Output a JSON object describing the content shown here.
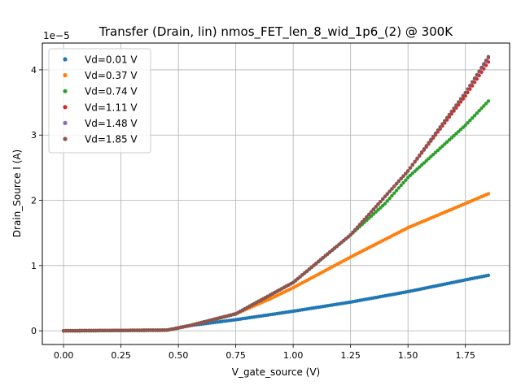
{
  "chart_data": {
    "type": "scatter",
    "title": "Transfer (Drain, lin) nmos_FET_len_8_wid_1p6_(2) @ 300K",
    "xlabel": "V_gate_source (V)",
    "ylabel": "Drain_Source I (A)",
    "y_scale_label": "1e−5",
    "y_scale": 1e-05,
    "xlim": [
      -0.0925,
      1.9425
    ],
    "ylim": [
      -0.21,
      4.41
    ],
    "xticks": [
      0.0,
      0.25,
      0.5,
      0.75,
      1.0,
      1.25,
      1.5,
      1.75
    ],
    "xtick_labels": [
      "0.00",
      "0.25",
      "0.50",
      "0.75",
      "1.00",
      "1.25",
      "1.50",
      "1.75"
    ],
    "yticks": [
      0,
      1,
      2,
      3,
      4
    ],
    "ytick_labels": [
      "0",
      "1",
      "2",
      "3",
      "4"
    ],
    "grid": true,
    "legend_position": "top-left",
    "x_range": [
      0.0,
      1.85
    ],
    "samples": [
      {
        "x": 0.0,
        "y": 0.0
      },
      {
        "x": 0.25,
        "y": 0.0
      },
      {
        "x": 0.45,
        "y": 0.01
      },
      {
        "x": 0.5,
        "y": 0.04
      },
      {
        "x": 0.6,
        "y": 0.12
      },
      {
        "x": 0.75,
        "y": 0.25
      },
      {
        "x": 0.9,
        "y": 0.5
      },
      {
        "x": 1.0,
        "y": 0.73
      },
      {
        "x": 1.25,
        "y": 1.45
      },
      {
        "x": 1.5,
        "y": 2.45
      },
      {
        "x": 1.75,
        "y": 3.65
      },
      {
        "x": 1.85,
        "y": 4.2
      }
    ],
    "series": [
      {
        "name": "Vd=0.01 V",
        "color": "#1f77b4",
        "points": [
          [
            0.0,
            0.0
          ],
          [
            0.45,
            0.01
          ],
          [
            0.55,
            0.08
          ],
          [
            0.75,
            0.17
          ],
          [
            1.0,
            0.3
          ],
          [
            1.25,
            0.44
          ],
          [
            1.5,
            0.6
          ],
          [
            1.75,
            0.78
          ],
          [
            1.85,
            0.85
          ]
        ]
      },
      {
        "name": "Vd=0.37 V",
        "color": "#ff7f0e",
        "points": [
          [
            0.0,
            0.0
          ],
          [
            0.45,
            0.01
          ],
          [
            0.55,
            0.08
          ],
          [
            0.75,
            0.26
          ],
          [
            0.9,
            0.49
          ],
          [
            1.0,
            0.66
          ],
          [
            1.25,
            1.13
          ],
          [
            1.5,
            1.58
          ],
          [
            1.75,
            1.95
          ],
          [
            1.85,
            2.1
          ]
        ]
      },
      {
        "name": "Vd=0.74 V",
        "color": "#2ca02c",
        "points": [
          [
            0.0,
            0.0
          ],
          [
            0.45,
            0.01
          ],
          [
            0.55,
            0.08
          ],
          [
            0.75,
            0.26
          ],
          [
            1.0,
            0.74
          ],
          [
            1.25,
            1.47
          ],
          [
            1.4,
            1.95
          ],
          [
            1.5,
            2.35
          ],
          [
            1.75,
            3.15
          ],
          [
            1.85,
            3.52
          ]
        ]
      },
      {
        "name": "Vd=1.11 V",
        "color": "#d62728",
        "points": [
          [
            0.0,
            0.0
          ],
          [
            0.45,
            0.01
          ],
          [
            0.55,
            0.08
          ],
          [
            0.75,
            0.26
          ],
          [
            1.0,
            0.74
          ],
          [
            1.25,
            1.47
          ],
          [
            1.5,
            2.45
          ],
          [
            1.75,
            3.6
          ],
          [
            1.85,
            4.12
          ]
        ]
      },
      {
        "name": "Vd=1.48 V",
        "color": "#9467bd",
        "points": [
          [
            0.0,
            0.0
          ],
          [
            0.45,
            0.01
          ],
          [
            0.55,
            0.08
          ],
          [
            0.75,
            0.26
          ],
          [
            1.0,
            0.74
          ],
          [
            1.25,
            1.47
          ],
          [
            1.5,
            2.45
          ],
          [
            1.75,
            3.65
          ],
          [
            1.85,
            4.18
          ]
        ]
      },
      {
        "name": "Vd=1.85 V",
        "color": "#8c564b",
        "points": [
          [
            0.0,
            0.0
          ],
          [
            0.45,
            0.01
          ],
          [
            0.55,
            0.08
          ],
          [
            0.75,
            0.26
          ],
          [
            1.0,
            0.74
          ],
          [
            1.25,
            1.47
          ],
          [
            1.5,
            2.45
          ],
          [
            1.75,
            3.65
          ],
          [
            1.85,
            4.2
          ]
        ]
      }
    ]
  }
}
